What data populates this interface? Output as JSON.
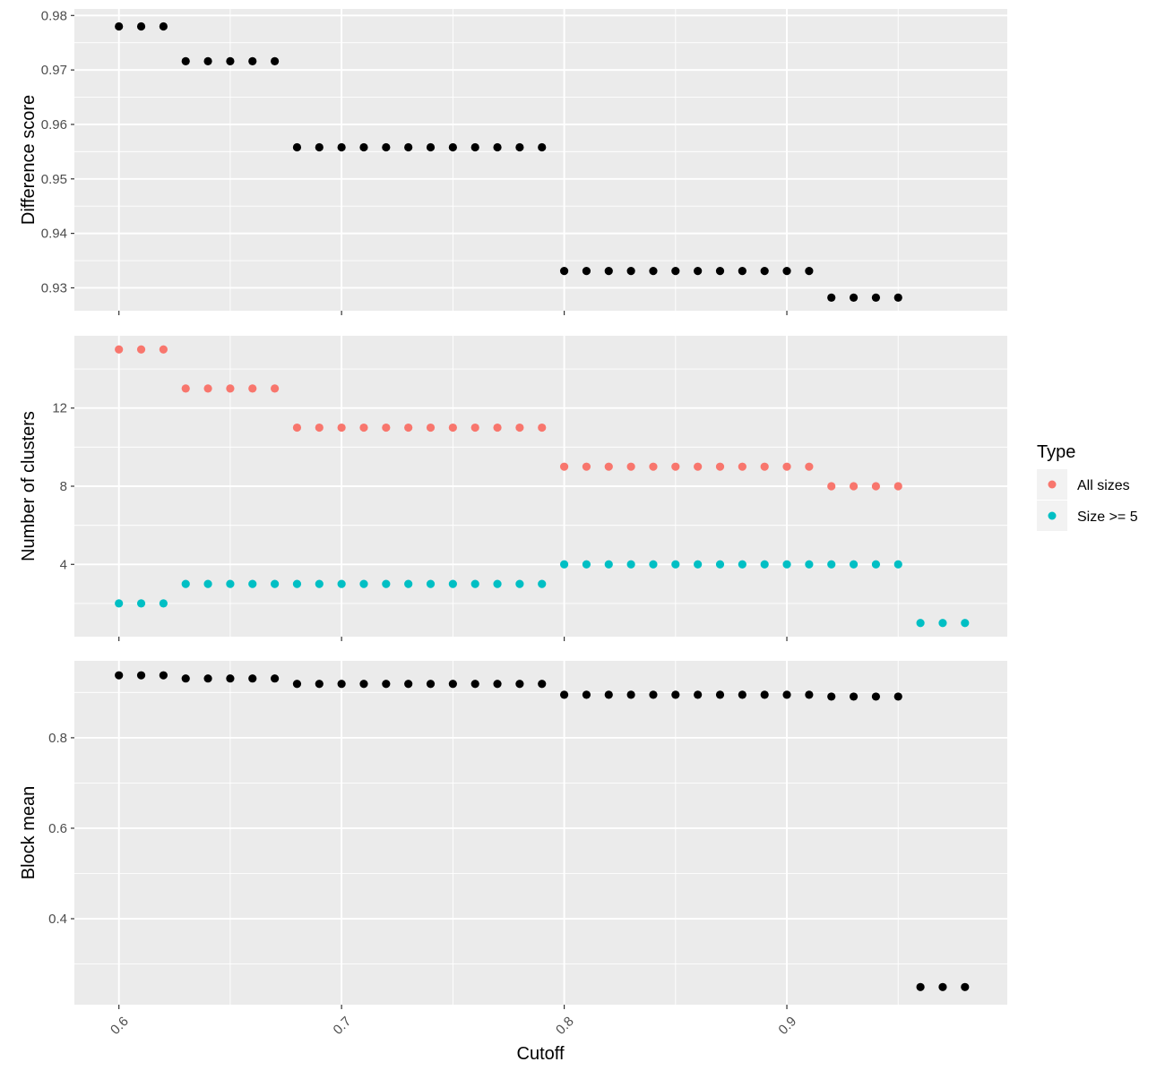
{
  "chart_data": [
    {
      "type": "scatter",
      "ylabel": "Difference score",
      "xlabel": "",
      "xlim": [
        0.58,
        0.999
      ],
      "ylim": [
        0.9258,
        0.9812
      ],
      "x_ticks": [
        0.6,
        0.7,
        0.8,
        0.9
      ],
      "y_ticks": [
        0.93,
        0.94,
        0.95,
        0.96,
        0.97,
        0.98
      ],
      "y_tick_labels": [
        "0.93",
        "0.94",
        "0.95",
        "0.96",
        "0.97",
        "0.98"
      ],
      "grid": true,
      "series": [
        {
          "color": "#000000",
          "points": [
            [
              0.6,
              0.978
            ],
            [
              0.61,
              0.978
            ],
            [
              0.62,
              0.978
            ],
            [
              0.63,
              0.9716
            ],
            [
              0.64,
              0.9716
            ],
            [
              0.65,
              0.9716
            ],
            [
              0.66,
              0.9716
            ],
            [
              0.67,
              0.9716
            ],
            [
              0.68,
              0.9558
            ],
            [
              0.69,
              0.9558
            ],
            [
              0.7,
              0.9558
            ],
            [
              0.71,
              0.9558
            ],
            [
              0.72,
              0.9558
            ],
            [
              0.73,
              0.9558
            ],
            [
              0.74,
              0.9558
            ],
            [
              0.75,
              0.9558
            ],
            [
              0.76,
              0.9558
            ],
            [
              0.77,
              0.9558
            ],
            [
              0.78,
              0.9558
            ],
            [
              0.79,
              0.9558
            ],
            [
              0.8,
              0.9331
            ],
            [
              0.81,
              0.9331
            ],
            [
              0.82,
              0.9331
            ],
            [
              0.83,
              0.9331
            ],
            [
              0.84,
              0.9331
            ],
            [
              0.85,
              0.9331
            ],
            [
              0.86,
              0.9331
            ],
            [
              0.87,
              0.9331
            ],
            [
              0.88,
              0.9331
            ],
            [
              0.89,
              0.9331
            ],
            [
              0.9,
              0.9331
            ],
            [
              0.91,
              0.9331
            ],
            [
              0.92,
              0.9282
            ],
            [
              0.93,
              0.9282
            ],
            [
              0.94,
              0.9282
            ],
            [
              0.95,
              0.9282
            ]
          ]
        }
      ]
    },
    {
      "type": "scatter",
      "ylabel": "Number of clusters",
      "xlabel": "",
      "xlim": [
        0.58,
        0.999
      ],
      "ylim": [
        0.3,
        15.7
      ],
      "x_ticks": [
        0.6,
        0.7,
        0.8,
        0.9
      ],
      "y_ticks": [
        4,
        8,
        12
      ],
      "y_tick_labels": [
        "4",
        "8",
        "12"
      ],
      "grid": true,
      "series": [
        {
          "name": "All sizes",
          "color": "#F8766D",
          "points": [
            [
              0.6,
              15
            ],
            [
              0.61,
              15
            ],
            [
              0.62,
              15
            ],
            [
              0.63,
              13
            ],
            [
              0.64,
              13
            ],
            [
              0.65,
              13
            ],
            [
              0.66,
              13
            ],
            [
              0.67,
              13
            ],
            [
              0.68,
              11
            ],
            [
              0.69,
              11
            ],
            [
              0.7,
              11
            ],
            [
              0.71,
              11
            ],
            [
              0.72,
              11
            ],
            [
              0.73,
              11
            ],
            [
              0.74,
              11
            ],
            [
              0.75,
              11
            ],
            [
              0.76,
              11
            ],
            [
              0.77,
              11
            ],
            [
              0.78,
              11
            ],
            [
              0.79,
              11
            ],
            [
              0.8,
              9
            ],
            [
              0.81,
              9
            ],
            [
              0.82,
              9
            ],
            [
              0.83,
              9
            ],
            [
              0.84,
              9
            ],
            [
              0.85,
              9
            ],
            [
              0.86,
              9
            ],
            [
              0.87,
              9
            ],
            [
              0.88,
              9
            ],
            [
              0.89,
              9
            ],
            [
              0.9,
              9
            ],
            [
              0.91,
              9
            ],
            [
              0.92,
              8
            ],
            [
              0.93,
              8
            ],
            [
              0.94,
              8
            ],
            [
              0.95,
              8
            ]
          ]
        },
        {
          "name": "Size >= 5",
          "color": "#00BFC4",
          "points": [
            [
              0.6,
              2
            ],
            [
              0.61,
              2
            ],
            [
              0.62,
              2
            ],
            [
              0.63,
              3
            ],
            [
              0.64,
              3
            ],
            [
              0.65,
              3
            ],
            [
              0.66,
              3
            ],
            [
              0.67,
              3
            ],
            [
              0.68,
              3
            ],
            [
              0.69,
              3
            ],
            [
              0.7,
              3
            ],
            [
              0.71,
              3
            ],
            [
              0.72,
              3
            ],
            [
              0.73,
              3
            ],
            [
              0.74,
              3
            ],
            [
              0.75,
              3
            ],
            [
              0.76,
              3
            ],
            [
              0.77,
              3
            ],
            [
              0.78,
              3
            ],
            [
              0.79,
              3
            ],
            [
              0.8,
              4
            ],
            [
              0.81,
              4
            ],
            [
              0.82,
              4
            ],
            [
              0.83,
              4
            ],
            [
              0.84,
              4
            ],
            [
              0.85,
              4
            ],
            [
              0.86,
              4
            ],
            [
              0.87,
              4
            ],
            [
              0.88,
              4
            ],
            [
              0.89,
              4
            ],
            [
              0.9,
              4
            ],
            [
              0.91,
              4
            ],
            [
              0.92,
              4
            ],
            [
              0.93,
              4
            ],
            [
              0.94,
              4
            ],
            [
              0.95,
              4
            ],
            [
              0.96,
              1
            ],
            [
              0.97,
              1
            ],
            [
              0.98,
              1
            ]
          ]
        }
      ]
    },
    {
      "type": "scatter",
      "ylabel": "Block mean",
      "xlabel": "Cutoff",
      "xlim": [
        0.58,
        0.999
      ],
      "ylim": [
        0.21,
        0.97
      ],
      "x_ticks": [
        0.6,
        0.7,
        0.8,
        0.9
      ],
      "x_tick_labels": [
        "0.6",
        "0.7",
        "0.8",
        "0.9"
      ],
      "y_ticks": [
        0.4,
        0.6,
        0.8
      ],
      "y_tick_labels": [
        "0.4",
        "0.6",
        "0.8"
      ],
      "grid": true,
      "series": [
        {
          "color": "#000000",
          "points": [
            [
              0.6,
              0.938
            ],
            [
              0.61,
              0.938
            ],
            [
              0.62,
              0.938
            ],
            [
              0.63,
              0.931
            ],
            [
              0.64,
              0.931
            ],
            [
              0.65,
              0.931
            ],
            [
              0.66,
              0.931
            ],
            [
              0.67,
              0.931
            ],
            [
              0.68,
              0.919
            ],
            [
              0.69,
              0.919
            ],
            [
              0.7,
              0.919
            ],
            [
              0.71,
              0.919
            ],
            [
              0.72,
              0.919
            ],
            [
              0.73,
              0.919
            ],
            [
              0.74,
              0.919
            ],
            [
              0.75,
              0.919
            ],
            [
              0.76,
              0.919
            ],
            [
              0.77,
              0.919
            ],
            [
              0.78,
              0.919
            ],
            [
              0.79,
              0.919
            ],
            [
              0.8,
              0.895
            ],
            [
              0.81,
              0.895
            ],
            [
              0.82,
              0.895
            ],
            [
              0.83,
              0.895
            ],
            [
              0.84,
              0.895
            ],
            [
              0.85,
              0.895
            ],
            [
              0.86,
              0.895
            ],
            [
              0.87,
              0.895
            ],
            [
              0.88,
              0.895
            ],
            [
              0.89,
              0.895
            ],
            [
              0.9,
              0.895
            ],
            [
              0.91,
              0.895
            ],
            [
              0.92,
              0.891
            ],
            [
              0.93,
              0.891
            ],
            [
              0.94,
              0.891
            ],
            [
              0.95,
              0.891
            ],
            [
              0.96,
              0.249
            ],
            [
              0.97,
              0.249
            ],
            [
              0.98,
              0.249
            ]
          ]
        }
      ]
    }
  ],
  "legend": {
    "title": "Type",
    "items": [
      {
        "label": "All sizes",
        "color": "#F8766D"
      },
      {
        "label": "Size >= 5",
        "color": "#00BFC4"
      }
    ]
  },
  "colors": {
    "panel_background": "#EBEBEB",
    "grid_major": "#FFFFFF",
    "tick_text": "#4D4D4D",
    "tick_mark": "#333333"
  }
}
